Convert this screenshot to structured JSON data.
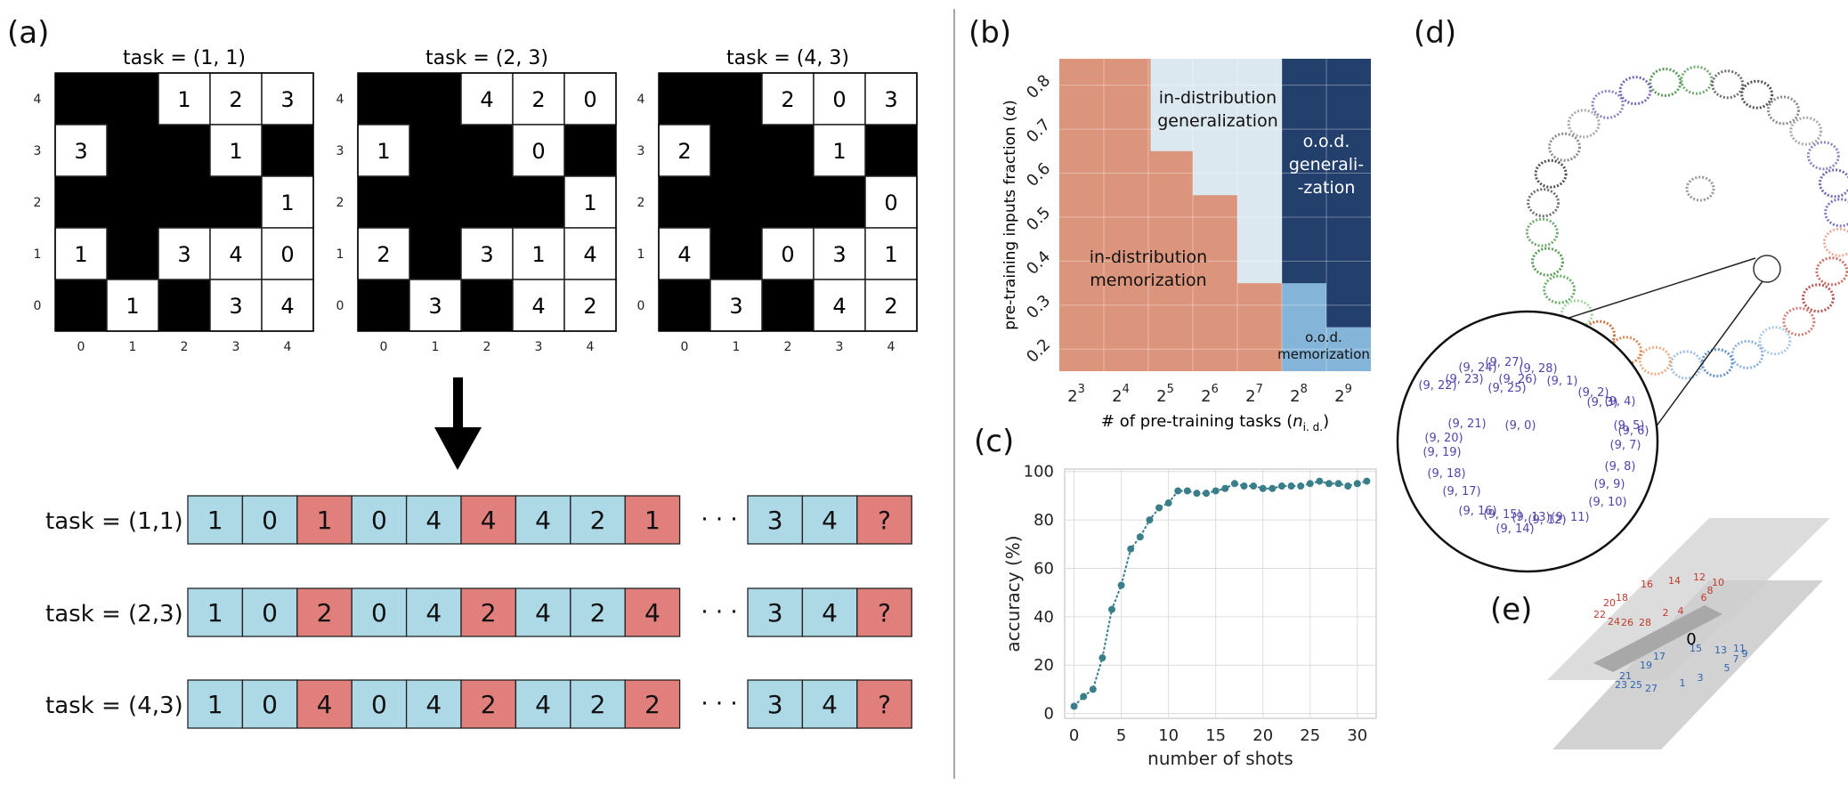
{
  "panels": {
    "a": "(a)",
    "b": "(b)",
    "c": "(c)",
    "d": "(d)",
    "e": "(e)"
  },
  "grids": {
    "title_word": "task",
    "axis_ticks": [
      "0",
      "1",
      "2",
      "3",
      "4"
    ],
    "items": [
      {
        "title": "task  = (1, 1)",
        "white": [
          [
            0,
            2,
            "1"
          ],
          [
            0,
            3,
            "2"
          ],
          [
            0,
            4,
            "3"
          ],
          [
            1,
            0,
            "3"
          ],
          [
            1,
            3,
            "1"
          ],
          [
            2,
            4,
            "1"
          ],
          [
            3,
            0,
            "1"
          ],
          [
            3,
            2,
            "3"
          ],
          [
            3,
            3,
            "4"
          ],
          [
            3,
            4,
            "0"
          ],
          [
            4,
            1,
            "1"
          ],
          [
            4,
            3,
            "3"
          ],
          [
            4,
            4,
            "4"
          ]
        ]
      },
      {
        "title": "task  = (2, 3)",
        "white": [
          [
            0,
            2,
            "4"
          ],
          [
            0,
            3,
            "2"
          ],
          [
            0,
            4,
            "0"
          ],
          [
            1,
            0,
            "1"
          ],
          [
            1,
            3,
            "0"
          ],
          [
            2,
            4,
            "1"
          ],
          [
            3,
            0,
            "2"
          ],
          [
            3,
            2,
            "3"
          ],
          [
            3,
            3,
            "1"
          ],
          [
            3,
            4,
            "4"
          ],
          [
            4,
            1,
            "3"
          ],
          [
            4,
            3,
            "4"
          ],
          [
            4,
            4,
            "2"
          ]
        ]
      },
      {
        "title": "task  = (4, 3)",
        "white": [
          [
            0,
            2,
            "2"
          ],
          [
            0,
            3,
            "0"
          ],
          [
            0,
            4,
            "3"
          ],
          [
            1,
            0,
            "2"
          ],
          [
            1,
            3,
            "1"
          ],
          [
            2,
            4,
            "0"
          ],
          [
            3,
            0,
            "4"
          ],
          [
            3,
            2,
            "0"
          ],
          [
            3,
            3,
            "3"
          ],
          [
            3,
            4,
            "1"
          ],
          [
            4,
            1,
            "3"
          ],
          [
            4,
            3,
            "4"
          ],
          [
            4,
            4,
            "2"
          ]
        ]
      }
    ]
  },
  "sequences": {
    "ellipsis": "· · ·",
    "rows": [
      {
        "label": "task = (1,1)",
        "cells": [
          "1",
          "0",
          "1",
          "0",
          "4",
          "4",
          "4",
          "2",
          "1"
        ],
        "tail": [
          "3",
          "4",
          "?"
        ]
      },
      {
        "label": "task = (2,3)",
        "cells": [
          "1",
          "0",
          "2",
          "0",
          "4",
          "2",
          "4",
          "2",
          "4"
        ],
        "tail": [
          "3",
          "4",
          "?"
        ]
      },
      {
        "label": "task = (4,3)",
        "cells": [
          "1",
          "0",
          "4",
          "0",
          "4",
          "2",
          "4",
          "2",
          "2"
        ],
        "tail": [
          "3",
          "4",
          "?"
        ]
      }
    ]
  },
  "phase": {
    "ylabel": "pre-training inputs fraction (α)",
    "xlabel_main": "# of pre-training tasks (",
    "xlabel_var": "n",
    "xlabel_sub": "i. d.",
    "xlabel_end": ")",
    "xticks": [
      {
        "base": "2",
        "exp": "3"
      },
      {
        "base": "2",
        "exp": "4"
      },
      {
        "base": "2",
        "exp": "5"
      },
      {
        "base": "2",
        "exp": "6"
      },
      {
        "base": "2",
        "exp": "7"
      },
      {
        "base": "2",
        "exp": "8"
      },
      {
        "base": "2",
        "exp": "9"
      }
    ],
    "yticks": [
      "0.2",
      "0.3",
      "0.4",
      "0.5",
      "0.6",
      "0.7",
      "0.8"
    ],
    "regions": {
      "id_mem": [
        "in-distribution",
        "memorization"
      ],
      "id_gen": [
        "in-distribution",
        "generalization"
      ],
      "ood_gen": [
        "o.o.d.",
        "generali-",
        "-zation"
      ],
      "ood_mem": [
        "o.o.d.",
        "memorization"
      ]
    },
    "colors": {
      "id_mem": "#dc957d",
      "id_gen": "#dce8ef",
      "ood_gen": "#233f6c",
      "ood_mem": "#85b4d9"
    }
  },
  "chart_data": {
    "type": "line",
    "title": "",
    "xlabel": "number of shots",
    "ylabel": "accuracy (%)",
    "xlim": [
      -1,
      32
    ],
    "ylim": [
      -2,
      101
    ],
    "xticks": [
      "0",
      "5",
      "10",
      "15",
      "20",
      "25",
      "30"
    ],
    "yticks": [
      "0",
      "20",
      "40",
      "60",
      "80",
      "100"
    ],
    "x": [
      0,
      1,
      2,
      3,
      4,
      5,
      6,
      7,
      8,
      9,
      10,
      11,
      12,
      13,
      14,
      15,
      16,
      17,
      18,
      19,
      20,
      21,
      22,
      23,
      24,
      25,
      26,
      27,
      28,
      29,
      30,
      31
    ],
    "y": [
      3,
      7,
      10,
      23,
      43,
      53,
      68,
      73,
      80,
      85,
      87,
      92,
      92,
      91,
      91,
      92,
      93,
      95,
      94,
      94,
      93,
      93,
      94,
      94,
      94,
      95,
      96,
      95,
      95,
      94,
      95,
      96
    ],
    "color": "#3a7e8a"
  },
  "zoom_labels": [
    "(9, 27)",
    "(9, 28)",
    "(9, 24)",
    "(9, 26)",
    "(9, 1)",
    "(9, 23)",
    "(9, 25)",
    "(9, 2)",
    "(9, 3)",
    "(9, 4)",
    "(9, 22)",
    "(9, 5)",
    "(9, 21)",
    "(9, 0)",
    "(9, 6)",
    "(9, 20)",
    "(9, 7)",
    "(9, 19)",
    "(9, 8)",
    "(9, 18)",
    "(9, 9)",
    "(9, 17)",
    "(9, 10)",
    "(9, 16)",
    "(9, 15)",
    "(9, 13)",
    "(9, 12)",
    "(9, 11)",
    "(9, 14)"
  ],
  "plane": {
    "center": "0",
    "top_labels": [
      "16",
      "14",
      "12",
      "10",
      "8",
      "6",
      "20",
      "18",
      "22",
      "24",
      "26",
      "28",
      "2",
      "4"
    ],
    "bottom_labels": [
      "15",
      "13",
      "11",
      "9",
      "17",
      "19",
      "21",
      "23",
      "25",
      "27",
      "1",
      "3",
      "5",
      "7"
    ]
  }
}
